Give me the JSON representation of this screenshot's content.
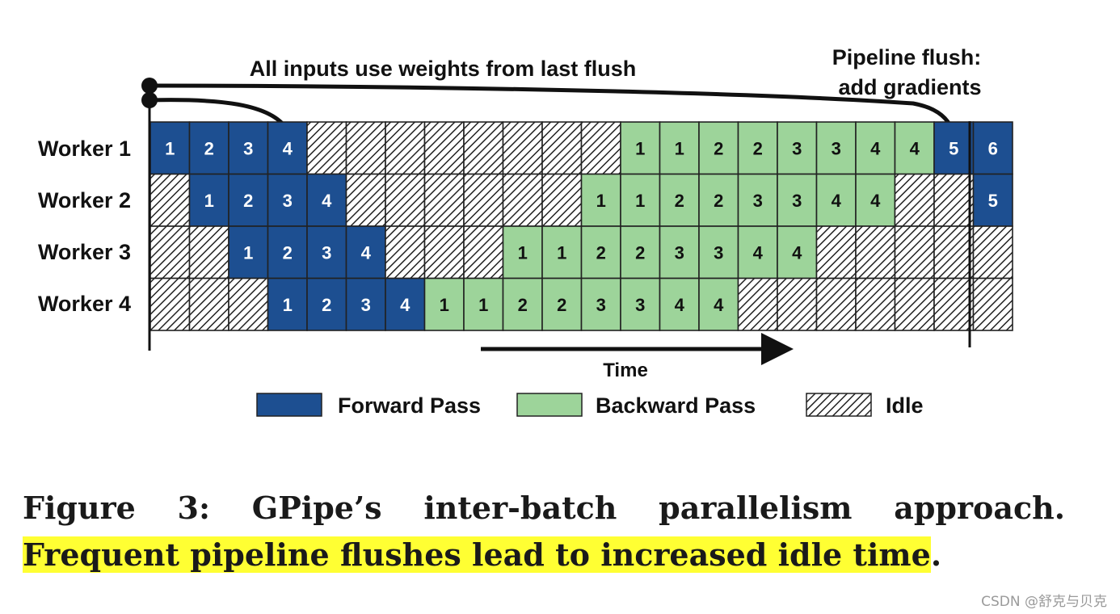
{
  "annotations": {
    "top": "All inputs use weights from last flush",
    "flush_line1": "Pipeline flush:",
    "flush_line2": "add gradients"
  },
  "workers": [
    "Worker 1",
    "Worker 2",
    "Worker 3",
    "Worker 4"
  ],
  "time_label": "Time",
  "legend": [
    {
      "key": "F",
      "label": "Forward Pass"
    },
    {
      "key": "B",
      "label": "Backward Pass"
    },
    {
      "key": "I",
      "label": "Idle"
    }
  ],
  "colors": {
    "forward": "#1d4f91",
    "backward": "#9dd49a",
    "idle_bg": "#ffffff",
    "idle_hatch": "#222222"
  },
  "schedule": [
    [
      "F1",
      "F2",
      "F3",
      "F4",
      "I",
      "I",
      "I",
      "I",
      "I",
      "I",
      "I",
      "I",
      "B1",
      "B1",
      "B2",
      "B2",
      "B3",
      "B3",
      "B4",
      "B4",
      "F5",
      "F6"
    ],
    [
      "I",
      "F1",
      "F2",
      "F3",
      "F4",
      "I",
      "I",
      "I",
      "I",
      "I",
      "I",
      "B1",
      "B1",
      "B2",
      "B2",
      "B3",
      "B3",
      "B4",
      "B4",
      "I",
      "I",
      "F5"
    ],
    [
      "I",
      "I",
      "F1",
      "F2",
      "F3",
      "F4",
      "I",
      "I",
      "I",
      "B1",
      "B1",
      "B2",
      "B2",
      "B3",
      "B3",
      "B4",
      "B4",
      "I",
      "I",
      "I",
      "I",
      "I"
    ],
    [
      "I",
      "I",
      "I",
      "F1",
      "F2",
      "F3",
      "F4",
      "B1",
      "B1",
      "B2",
      "B2",
      "B3",
      "B3",
      "B4",
      "B4",
      "I",
      "I",
      "I",
      "I",
      "I",
      "I",
      "I"
    ]
  ],
  "caption": {
    "plain": "Figure 3: GPipe’s inter-batch parallelism approach. ",
    "highlight": "Frequent pipeline flushes lead to increased idle time",
    "end": "."
  },
  "watermark": "CSDN @舒克与贝克"
}
